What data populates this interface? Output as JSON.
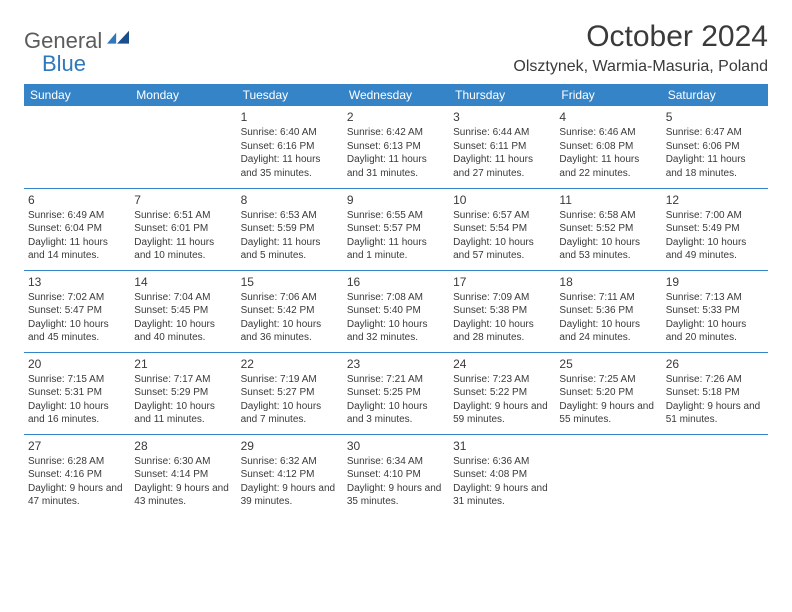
{
  "logo": {
    "word1": "General",
    "word2": "Blue"
  },
  "title": "October 2024",
  "location": "Olsztynek, Warmia-Masuria, Poland",
  "colors": {
    "header_bg": "#3684c8",
    "header_text": "#ffffff",
    "text": "#3a3a3a",
    "rule": "#3684c8",
    "logo_gray": "#5c5c5c",
    "logo_blue": "#2f78bc"
  },
  "fonts": {
    "title_size": 30,
    "location_size": 16,
    "dayhead_size": 12,
    "cell_size": 10,
    "daynum_size": 12
  },
  "days": [
    "Sunday",
    "Monday",
    "Tuesday",
    "Wednesday",
    "Thursday",
    "Friday",
    "Saturday"
  ],
  "weeks": [
    [
      null,
      null,
      {
        "n": "1",
        "sr": "Sunrise: 6:40 AM",
        "ss": "Sunset: 6:16 PM",
        "dl": "Daylight: 11 hours and 35 minutes."
      },
      {
        "n": "2",
        "sr": "Sunrise: 6:42 AM",
        "ss": "Sunset: 6:13 PM",
        "dl": "Daylight: 11 hours and 31 minutes."
      },
      {
        "n": "3",
        "sr": "Sunrise: 6:44 AM",
        "ss": "Sunset: 6:11 PM",
        "dl": "Daylight: 11 hours and 27 minutes."
      },
      {
        "n": "4",
        "sr": "Sunrise: 6:46 AM",
        "ss": "Sunset: 6:08 PM",
        "dl": "Daylight: 11 hours and 22 minutes."
      },
      {
        "n": "5",
        "sr": "Sunrise: 6:47 AM",
        "ss": "Sunset: 6:06 PM",
        "dl": "Daylight: 11 hours and 18 minutes."
      }
    ],
    [
      {
        "n": "6",
        "sr": "Sunrise: 6:49 AM",
        "ss": "Sunset: 6:04 PM",
        "dl": "Daylight: 11 hours and 14 minutes."
      },
      {
        "n": "7",
        "sr": "Sunrise: 6:51 AM",
        "ss": "Sunset: 6:01 PM",
        "dl": "Daylight: 11 hours and 10 minutes."
      },
      {
        "n": "8",
        "sr": "Sunrise: 6:53 AM",
        "ss": "Sunset: 5:59 PM",
        "dl": "Daylight: 11 hours and 5 minutes."
      },
      {
        "n": "9",
        "sr": "Sunrise: 6:55 AM",
        "ss": "Sunset: 5:57 PM",
        "dl": "Daylight: 11 hours and 1 minute."
      },
      {
        "n": "10",
        "sr": "Sunrise: 6:57 AM",
        "ss": "Sunset: 5:54 PM",
        "dl": "Daylight: 10 hours and 57 minutes."
      },
      {
        "n": "11",
        "sr": "Sunrise: 6:58 AM",
        "ss": "Sunset: 5:52 PM",
        "dl": "Daylight: 10 hours and 53 minutes."
      },
      {
        "n": "12",
        "sr": "Sunrise: 7:00 AM",
        "ss": "Sunset: 5:49 PM",
        "dl": "Daylight: 10 hours and 49 minutes."
      }
    ],
    [
      {
        "n": "13",
        "sr": "Sunrise: 7:02 AM",
        "ss": "Sunset: 5:47 PM",
        "dl": "Daylight: 10 hours and 45 minutes."
      },
      {
        "n": "14",
        "sr": "Sunrise: 7:04 AM",
        "ss": "Sunset: 5:45 PM",
        "dl": "Daylight: 10 hours and 40 minutes."
      },
      {
        "n": "15",
        "sr": "Sunrise: 7:06 AM",
        "ss": "Sunset: 5:42 PM",
        "dl": "Daylight: 10 hours and 36 minutes."
      },
      {
        "n": "16",
        "sr": "Sunrise: 7:08 AM",
        "ss": "Sunset: 5:40 PM",
        "dl": "Daylight: 10 hours and 32 minutes."
      },
      {
        "n": "17",
        "sr": "Sunrise: 7:09 AM",
        "ss": "Sunset: 5:38 PM",
        "dl": "Daylight: 10 hours and 28 minutes."
      },
      {
        "n": "18",
        "sr": "Sunrise: 7:11 AM",
        "ss": "Sunset: 5:36 PM",
        "dl": "Daylight: 10 hours and 24 minutes."
      },
      {
        "n": "19",
        "sr": "Sunrise: 7:13 AM",
        "ss": "Sunset: 5:33 PM",
        "dl": "Daylight: 10 hours and 20 minutes."
      }
    ],
    [
      {
        "n": "20",
        "sr": "Sunrise: 7:15 AM",
        "ss": "Sunset: 5:31 PM",
        "dl": "Daylight: 10 hours and 16 minutes."
      },
      {
        "n": "21",
        "sr": "Sunrise: 7:17 AM",
        "ss": "Sunset: 5:29 PM",
        "dl": "Daylight: 10 hours and 11 minutes."
      },
      {
        "n": "22",
        "sr": "Sunrise: 7:19 AM",
        "ss": "Sunset: 5:27 PM",
        "dl": "Daylight: 10 hours and 7 minutes."
      },
      {
        "n": "23",
        "sr": "Sunrise: 7:21 AM",
        "ss": "Sunset: 5:25 PM",
        "dl": "Daylight: 10 hours and 3 minutes."
      },
      {
        "n": "24",
        "sr": "Sunrise: 7:23 AM",
        "ss": "Sunset: 5:22 PM",
        "dl": "Daylight: 9 hours and 59 minutes."
      },
      {
        "n": "25",
        "sr": "Sunrise: 7:25 AM",
        "ss": "Sunset: 5:20 PM",
        "dl": "Daylight: 9 hours and 55 minutes."
      },
      {
        "n": "26",
        "sr": "Sunrise: 7:26 AM",
        "ss": "Sunset: 5:18 PM",
        "dl": "Daylight: 9 hours and 51 minutes."
      }
    ],
    [
      {
        "n": "27",
        "sr": "Sunrise: 6:28 AM",
        "ss": "Sunset: 4:16 PM",
        "dl": "Daylight: 9 hours and 47 minutes."
      },
      {
        "n": "28",
        "sr": "Sunrise: 6:30 AM",
        "ss": "Sunset: 4:14 PM",
        "dl": "Daylight: 9 hours and 43 minutes."
      },
      {
        "n": "29",
        "sr": "Sunrise: 6:32 AM",
        "ss": "Sunset: 4:12 PM",
        "dl": "Daylight: 9 hours and 39 minutes."
      },
      {
        "n": "30",
        "sr": "Sunrise: 6:34 AM",
        "ss": "Sunset: 4:10 PM",
        "dl": "Daylight: 9 hours and 35 minutes."
      },
      {
        "n": "31",
        "sr": "Sunrise: 6:36 AM",
        "ss": "Sunset: 4:08 PM",
        "dl": "Daylight: 9 hours and 31 minutes."
      },
      null,
      null
    ]
  ]
}
